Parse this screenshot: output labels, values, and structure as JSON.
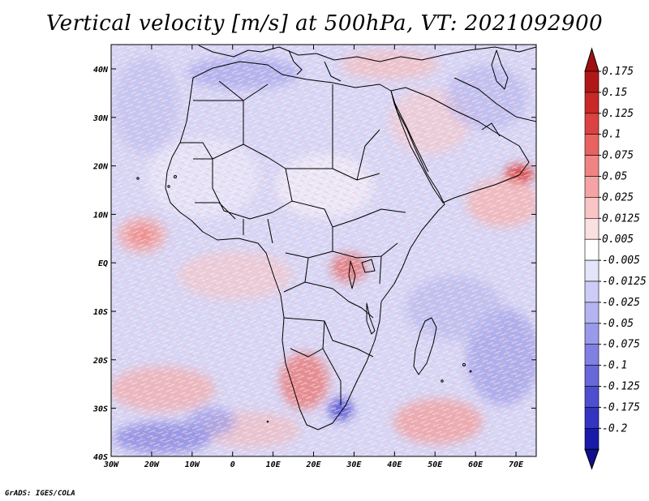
{
  "title": "Vertical velocity [m/s] at 500hPa, VT: 2021092900",
  "credit": "GrADS: IGES/COLA",
  "lon_ticks": [
    "30W",
    "20W",
    "10W",
    "0",
    "10E",
    "20E",
    "30E",
    "40E",
    "50E",
    "60E",
    "70E"
  ],
  "lat_ticks": [
    "40N",
    "30N",
    "20N",
    "10N",
    "EQ",
    "10S",
    "20S",
    "30S",
    "40S"
  ],
  "colorbar": {
    "levels": [
      "0.175",
      "0.15",
      "0.125",
      "0.1",
      "0.075",
      "0.05",
      "0.025",
      "0.0125",
      "0.005",
      "-0.005",
      "-0.0125",
      "-0.025",
      "-0.05",
      "-0.075",
      "-0.1",
      "-0.125",
      "-0.175",
      "-0.2"
    ],
    "colors": [
      "#b01818",
      "#c82828",
      "#dc4242",
      "#e86262",
      "#f08484",
      "#f4a4a4",
      "#f8c4c4",
      "#fbe0e0",
      "#ffffff",
      "#e4e4fa",
      "#ccccf6",
      "#b4b4f0",
      "#9a9aea",
      "#8080e2",
      "#6868da",
      "#4e4ecf",
      "#3434c2",
      "#1a1aa8"
    ],
    "top_arrow_color": "#a01010",
    "bottom_arrow_color": "#10108e"
  },
  "map_colors": {
    "background": "#d6d6f6",
    "coastline": "#000000"
  }
}
